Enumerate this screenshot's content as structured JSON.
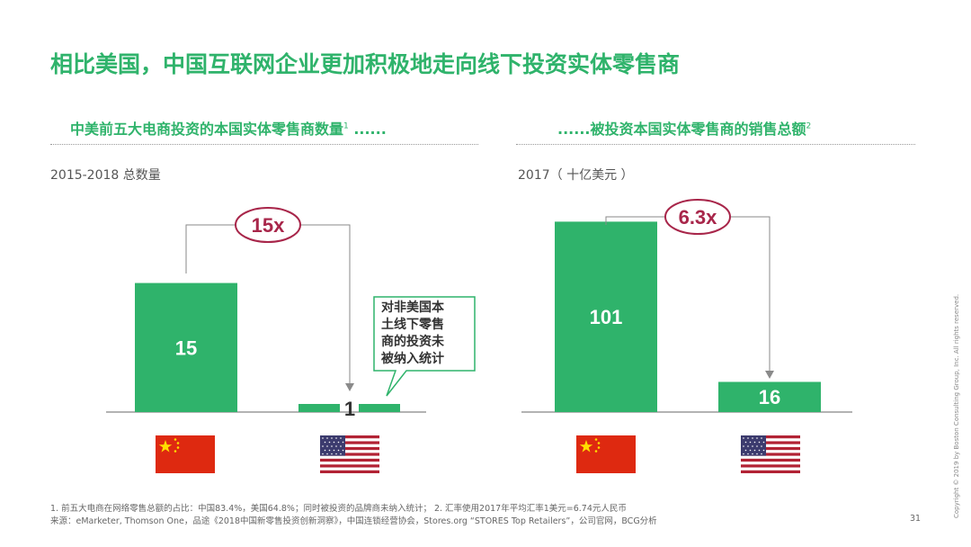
{
  "page": {
    "title": "相比美国，中国互联网企业更加积极地走向线下投资实体零售商",
    "page_number": "31",
    "copyright": "Copyright © 2019 by Boston Consulting Group, Inc. All rights reserved."
  },
  "left_panel": {
    "subtitle": "中美前五大电商投资的本国实体零售商数量",
    "subtitle_sup": "1",
    "subtitle_tail": " ......",
    "caption": "2015-2018 总数量",
    "multiplier": "15x",
    "callout_text": "对非美国本土线下零售商的投资未被纳入统计",
    "callout_lines": [
      "对非美国本",
      "土线下零售",
      "商的投资未",
      "被纳入统计"
    ]
  },
  "right_panel": {
    "subtitle": "......被投资本国实体零售商的销售总额",
    "subtitle_sup": "2",
    "caption": "2017（ 十亿美元 ）",
    "multiplier": "6.3x"
  },
  "chart_data": [
    {
      "type": "bar",
      "categories": [
        "中国",
        "美国"
      ],
      "values": [
        15,
        1
      ],
      "ylim": [
        0,
        16
      ],
      "grid": false,
      "legend": "none"
    },
    {
      "type": "bar",
      "categories": [
        "中国",
        "美国"
      ],
      "values": [
        101,
        16
      ],
      "ylim": [
        0,
        105
      ],
      "grid": false,
      "legend": "none"
    }
  ],
  "flags": {
    "china": "china-flag-icon",
    "usa": "usa-flag-icon"
  },
  "colors": {
    "accent": "#2fb36b",
    "bar": "#2fb36b",
    "ellipse": "#a8264a",
    "axis": "#9a9a9a"
  },
  "footnotes": {
    "line1": "1. 前五大电商在网络零售总额的占比：中国83.4%，美国64.8%；同时被投资的品牌商未纳入统计；   2. 汇率使用2017年平均汇率1美元=6.74元人民币",
    "line2": "来源：eMarketer, Thomson One，品途《2018中国新零售投资创新洞察》，中国连锁经营协会，Stores.org  “STORES Top Retailers”，公司官网，BCG分析"
  }
}
